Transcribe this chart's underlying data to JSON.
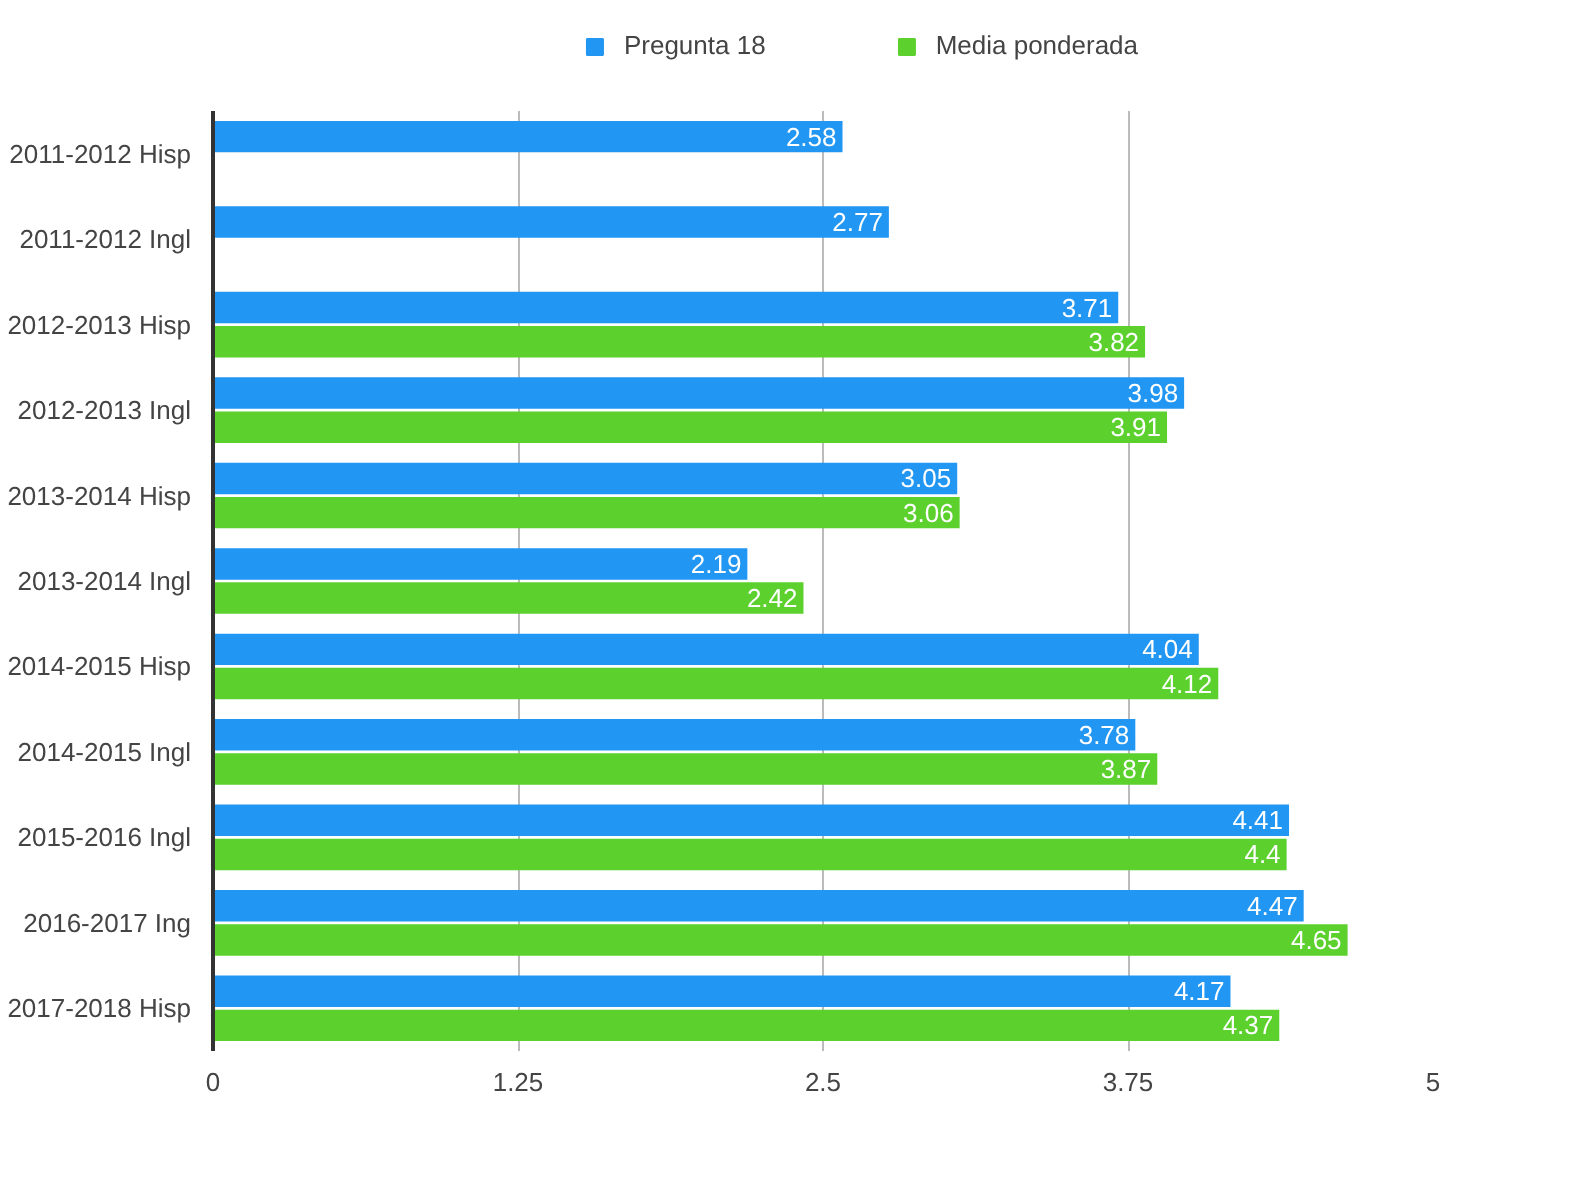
{
  "chart_data": {
    "type": "bar",
    "orientation": "horizontal",
    "categories": [
      "2011-2012 Hisp",
      "2011-2012 Ingl",
      "2012-2013 Hisp",
      "2012-2013 Ingl",
      "2013-2014 Hisp",
      "2013-2014 Ingl",
      "2014-2015 Hisp",
      "2014-2015 Ingl",
      "2015-2016 Ingl",
      "2016-2017 Ing",
      "2017-2018 Hisp"
    ],
    "series": [
      {
        "name": "Pregunta 18",
        "color": "#2196f3",
        "values": [
          2.58,
          2.77,
          3.71,
          3.98,
          3.05,
          2.19,
          4.04,
          3.78,
          4.41,
          4.47,
          4.17
        ]
      },
      {
        "name": "Media ponderada",
        "color": "#5cd12e",
        "values": [
          null,
          null,
          3.82,
          3.91,
          3.06,
          2.42,
          4.12,
          3.87,
          4.4,
          4.65,
          4.37
        ]
      }
    ],
    "xlim": [
      0,
      5
    ],
    "xticks": [
      0,
      1.25,
      2.5,
      3.75,
      5
    ],
    "grid": "x",
    "legend": "top",
    "data_labels": true
  }
}
